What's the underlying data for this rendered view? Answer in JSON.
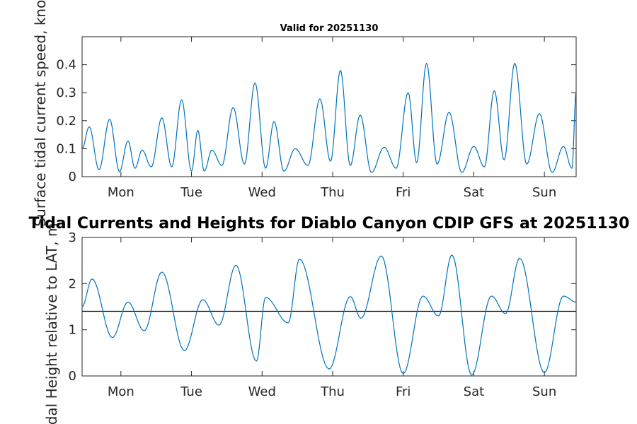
{
  "colors": {
    "series": "#0072BD",
    "reference": "#000000",
    "axes": "#262626"
  },
  "chart_data": [
    {
      "type": "line",
      "title": "Valid for 20251130",
      "ylabel": "Surface tidal current speed, knots",
      "xlabel": "",
      "xlim": [
        0,
        7
      ],
      "ylim": [
        0,
        0.5
      ],
      "yticks": [
        0,
        0.1,
        0.2,
        0.3,
        0.4
      ],
      "ytick_labels": [
        "0",
        "0.1",
        "0.2",
        "0.3",
        "0.4"
      ],
      "xticks": [
        0.55,
        1.55,
        2.55,
        3.55,
        4.55,
        5.55,
        6.55
      ],
      "xtick_labels": [
        "Mon",
        "Tue",
        "Wed",
        "Thu",
        "Fri",
        "Sat",
        "Sun"
      ],
      "series": [
        {
          "name": "Surface tidal current speed",
          "x": [
            0.0,
            0.1,
            0.24,
            0.39,
            0.53,
            0.65,
            0.75,
            0.85,
            0.98,
            1.13,
            1.27,
            1.41,
            1.55,
            1.64,
            1.73,
            1.84,
            1.98,
            2.14,
            2.3,
            2.45,
            2.6,
            2.72,
            2.86,
            3.02,
            3.2,
            3.37,
            3.52,
            3.66,
            3.8,
            3.94,
            4.1,
            4.28,
            4.45,
            4.62,
            4.74,
            4.88,
            5.03,
            5.2,
            5.38,
            5.55,
            5.7,
            5.84,
            5.98,
            6.13,
            6.3,
            6.48,
            6.66,
            6.82,
            6.94,
            7.0
          ],
          "values": [
            0.1,
            0.178,
            0.025,
            0.205,
            0.018,
            0.128,
            0.03,
            0.095,
            0.035,
            0.21,
            0.035,
            0.275,
            0.02,
            0.165,
            0.02,
            0.095,
            0.04,
            0.247,
            0.045,
            0.335,
            0.03,
            0.197,
            0.02,
            0.1,
            0.04,
            0.278,
            0.055,
            0.38,
            0.04,
            0.22,
            0.015,
            0.105,
            0.03,
            0.3,
            0.05,
            0.405,
            0.045,
            0.23,
            0.015,
            0.108,
            0.035,
            0.307,
            0.06,
            0.405,
            0.045,
            0.225,
            0.015,
            0.108,
            0.03,
            0.3
          ]
        }
      ]
    },
    {
      "type": "line",
      "title": "Tidal Currents and Heights for Diablo Canyon CDIP GFS at 20251130",
      "ylabel": "Tidal Height relative to LAT, m",
      "xlabel": "",
      "xlim": [
        0,
        7
      ],
      "ylim": [
        0,
        3
      ],
      "yticks": [
        0,
        1,
        2,
        3
      ],
      "ytick_labels": [
        "0",
        "1",
        "2",
        "3"
      ],
      "xticks": [
        0.55,
        1.55,
        2.55,
        3.55,
        4.55,
        5.55,
        6.55
      ],
      "xtick_labels": [
        "Mon",
        "Tue",
        "Wed",
        "Thu",
        "Fri",
        "Sat",
        "Sun"
      ],
      "reference_line": 1.4,
      "series": [
        {
          "name": "Tidal height",
          "x": [
            0.0,
            0.14,
            0.43,
            0.65,
            0.88,
            1.13,
            1.45,
            1.71,
            1.94,
            2.18,
            2.47,
            2.6,
            2.92,
            3.08,
            3.5,
            3.8,
            3.95,
            4.24,
            4.55,
            4.83,
            5.05,
            5.24,
            5.52,
            5.8,
            6.0,
            6.2,
            6.55,
            6.82,
            7.0
          ],
          "values": [
            1.5,
            2.1,
            0.83,
            1.6,
            0.98,
            2.25,
            0.55,
            1.65,
            1.1,
            2.4,
            0.32,
            1.7,
            1.15,
            2.53,
            0.15,
            1.72,
            1.25,
            2.6,
            0.05,
            1.73,
            1.3,
            2.62,
            0.02,
            1.73,
            1.35,
            2.55,
            0.07,
            1.73,
            1.6
          ]
        }
      ]
    }
  ]
}
